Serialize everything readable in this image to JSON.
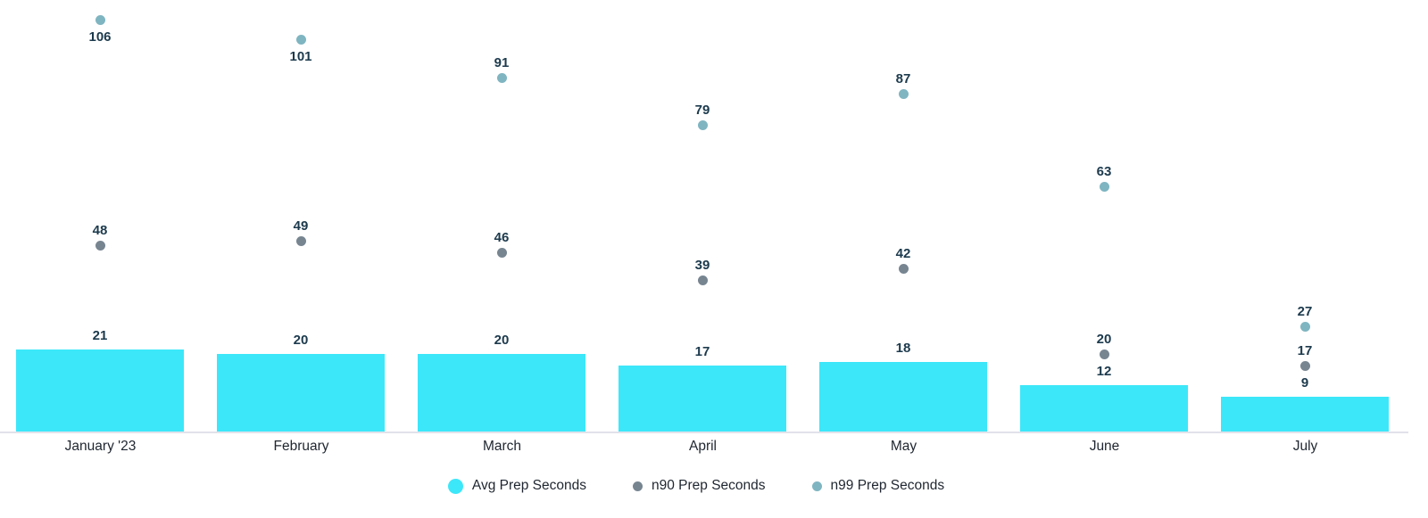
{
  "chart_data": {
    "type": "bar",
    "title": "",
    "xlabel": "",
    "ylabel": "",
    "categories": [
      "January '23",
      "February",
      "March",
      "April",
      "May",
      "June",
      "July"
    ],
    "series": [
      {
        "name": "Avg Prep Seconds",
        "type": "bar",
        "color": "#3CE7F9",
        "values": [
          21,
          20,
          20,
          17,
          18,
          12,
          9
        ]
      },
      {
        "name": "n90 Prep Seconds",
        "type": "scatter",
        "color": "#778591",
        "values": [
          48,
          49,
          46,
          39,
          42,
          20,
          17
        ]
      },
      {
        "name": "n99 Prep Seconds",
        "type": "scatter",
        "color": "#7FB5C1",
        "values": [
          106,
          101,
          91,
          79,
          87,
          63,
          27
        ]
      }
    ],
    "ylim": [
      0,
      111
    ],
    "grid": false,
    "y_axis_visible": false,
    "legend_position": "bottom",
    "data_labels": true,
    "colors": {
      "value_label": "#1C3A4D",
      "category_label": "#1F2630",
      "legend_text": "#1F2630",
      "axis_line": "#E1E2EA",
      "background": "#FFFFFF"
    }
  }
}
